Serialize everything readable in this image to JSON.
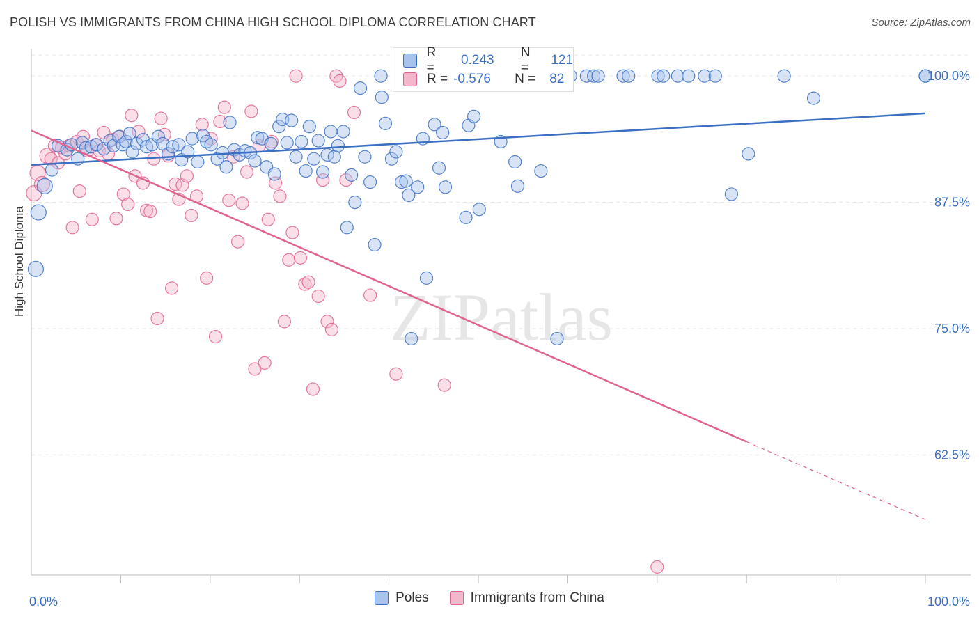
{
  "title": "POLISH VS IMMIGRANTS FROM CHINA HIGH SCHOOL DIPLOMA CORRELATION CHART",
  "source": "Source: ZipAtlas.com",
  "watermark": "ZIPatlas",
  "colors": {
    "blue": "#3a6fc4",
    "blue_fill": "#a9c4ec",
    "pink": "#e0628f",
    "pink_fill": "#f4b6cb",
    "tick_blue": "#3a6fc4"
  },
  "stats": {
    "r_label": "R =",
    "n_label": "N =",
    "rows": [
      {
        "series": "Poles",
        "r": "0.243",
        "n": "121"
      },
      {
        "series": "Immigrants from China",
        "r": "-0.576",
        "n": "82"
      }
    ]
  },
  "chart_data": {
    "type": "scatter",
    "ylabel": "High School Diploma",
    "xlabel": "",
    "xlim": [
      0,
      100
    ],
    "ylim": [
      50.6,
      102.7
    ],
    "x_tick_labels": [
      {
        "v": 0,
        "label": "0.0%"
      },
      {
        "v": 100,
        "label": "100.0%"
      }
    ],
    "y_ticks": [
      {
        "v": 100,
        "label": "100.0%"
      },
      {
        "v": 87.5,
        "label": "87.5%"
      },
      {
        "v": 75,
        "label": "75.0%"
      },
      {
        "v": 62.5,
        "label": "62.5%"
      }
    ],
    "grid": true,
    "legend_position": "bottom",
    "series": [
      {
        "name": "Poles",
        "trend": {
          "x": [
            0,
            100
          ],
          "y": [
            91.2,
            96.3
          ]
        },
        "points": [
          [
            0.5,
            80.9
          ],
          [
            0.8,
            86.5
          ],
          [
            1.5,
            89.1
          ],
          [
            2.3,
            90.7
          ],
          [
            3,
            93.1
          ],
          [
            4,
            92.7
          ],
          [
            4.5,
            93.2
          ],
          [
            5.2,
            91.8
          ],
          [
            5.7,
            93.4
          ],
          [
            6.1,
            92.9
          ],
          [
            6.7,
            93.0
          ],
          [
            7.3,
            93.2
          ],
          [
            8.1,
            92.8
          ],
          [
            8.8,
            93.6
          ],
          [
            9.2,
            93.1
          ],
          [
            9.8,
            94.0
          ],
          [
            10.2,
            93.2
          ],
          [
            10.6,
            93.5
          ],
          [
            11,
            94.3
          ],
          [
            11.3,
            92.5
          ],
          [
            11.8,
            93.3
          ],
          [
            12.5,
            93.7
          ],
          [
            12.9,
            93.0
          ],
          [
            13.5,
            93.2
          ],
          [
            14.2,
            94.0
          ],
          [
            14.7,
            93.3
          ],
          [
            15.3,
            92.3
          ],
          [
            15.8,
            93.0
          ],
          [
            16.5,
            93.2
          ],
          [
            16.8,
            91.7
          ],
          [
            17.5,
            92.5
          ],
          [
            18,
            93.8
          ],
          [
            18.6,
            91.5
          ],
          [
            19.2,
            94.1
          ],
          [
            19.6,
            93.5
          ],
          [
            20.1,
            93.2
          ],
          [
            20.8,
            91.8
          ],
          [
            21.4,
            92.4
          ],
          [
            21.8,
            91.0
          ],
          [
            22.2,
            95.4
          ],
          [
            22.7,
            92.7
          ],
          [
            23.3,
            92.2
          ],
          [
            23.9,
            92.6
          ],
          [
            24.5,
            92.4
          ],
          [
            25,
            91.6
          ],
          [
            25.3,
            93.9
          ],
          [
            25.8,
            93.8
          ],
          [
            26.3,
            91.0
          ],
          [
            26.8,
            93.3
          ],
          [
            27.2,
            90.3
          ],
          [
            27.7,
            95.0
          ],
          [
            28.1,
            95.7
          ],
          [
            28.6,
            93.4
          ],
          [
            29.1,
            95.6
          ],
          [
            29.6,
            92.0
          ],
          [
            30.2,
            93.5
          ],
          [
            30.7,
            90.6
          ],
          [
            31.1,
            95.0
          ],
          [
            31.6,
            91.8
          ],
          [
            32.1,
            93.6
          ],
          [
            32.6,
            90.5
          ],
          [
            33.1,
            92.2
          ],
          [
            33.5,
            94.5
          ],
          [
            33.9,
            92.0
          ],
          [
            34.3,
            93.1
          ],
          [
            34.9,
            94.5
          ],
          [
            35.3,
            85.0
          ],
          [
            35.8,
            90.2
          ],
          [
            36.2,
            87.5
          ],
          [
            36.8,
            98.8
          ],
          [
            37.3,
            92.0
          ],
          [
            37.9,
            89.5
          ],
          [
            38.4,
            83.3
          ],
          [
            39.1,
            100.0
          ],
          [
            39.6,
            95.3
          ],
          [
            40.3,
            91.8
          ],
          [
            40.8,
            92.5
          ],
          [
            41.4,
            89.5
          ],
          [
            41.9,
            89.6
          ],
          [
            42.2,
            88.2
          ],
          [
            42.5,
            74.0
          ],
          [
            43.2,
            89.0
          ],
          [
            43.8,
            93.8
          ],
          [
            44.2,
            80.0
          ],
          [
            45.1,
            95.2
          ],
          [
            45.6,
            90.9
          ],
          [
            46,
            94.4
          ],
          [
            46.3,
            89.0
          ],
          [
            47.8,
            100.0
          ],
          [
            48.6,
            86.0
          ],
          [
            48.9,
            95.1
          ],
          [
            49.5,
            96.0
          ],
          [
            50.1,
            86.8
          ],
          [
            51.2,
            100.0
          ],
          [
            52.5,
            93.5
          ],
          [
            53.3,
            100.0
          ],
          [
            54.1,
            91.5
          ],
          [
            54.4,
            89.1
          ],
          [
            55.8,
            100.0
          ],
          [
            57,
            90.6
          ],
          [
            58.8,
            74.0
          ],
          [
            62.1,
            100.0
          ],
          [
            62.9,
            100.0
          ],
          [
            63.4,
            100.0
          ],
          [
            66.2,
            100.0
          ],
          [
            66.8,
            100.0
          ],
          [
            70.1,
            100.0
          ],
          [
            70.7,
            100.0
          ],
          [
            72.3,
            100.0
          ],
          [
            73.5,
            100.0
          ],
          [
            75.3,
            100.0
          ],
          [
            76.5,
            100.0
          ],
          [
            78.3,
            88.3
          ],
          [
            80.2,
            92.3
          ],
          [
            84.2,
            100.0
          ],
          [
            87.5,
            97.8
          ],
          [
            100,
            100.0
          ],
          [
            100,
            100.0
          ],
          [
            39.2,
            97.9
          ],
          [
            46.5,
            100.0
          ],
          [
            60.3,
            100.0
          ]
        ]
      },
      {
        "name": "Immigrants from China",
        "trend": {
          "x": [
            0,
            80.0
          ],
          "y": [
            94.6,
            63.8
          ]
        },
        "trend_dashed": {
          "x": [
            80.0,
            100
          ],
          "y": [
            63.8,
            56.1
          ]
        },
        "points": [
          [
            0.3,
            88.4
          ],
          [
            0.7,
            90.4
          ],
          [
            1.2,
            89.3
          ],
          [
            1.8,
            92.1
          ],
          [
            2.2,
            91.8
          ],
          [
            2.6,
            93.1
          ],
          [
            3,
            91.4
          ],
          [
            3.4,
            92.9
          ],
          [
            3.8,
            92.3
          ],
          [
            4.2,
            93.1
          ],
          [
            4.6,
            85.0
          ],
          [
            5.1,
            93.5
          ],
          [
            5.4,
            88.6
          ],
          [
            5.8,
            94.0
          ],
          [
            6.3,
            92.6
          ],
          [
            6.8,
            85.8
          ],
          [
            7.2,
            93.2
          ],
          [
            7.6,
            92.6
          ],
          [
            8.1,
            94.4
          ],
          [
            8.6,
            92.3
          ],
          [
            9.1,
            93.7
          ],
          [
            9.5,
            85.9
          ],
          [
            9.9,
            94.0
          ],
          [
            10.3,
            88.3
          ],
          [
            10.8,
            87.3
          ],
          [
            11.2,
            96.1
          ],
          [
            11.6,
            90.1
          ],
          [
            12,
            94.5
          ],
          [
            12.5,
            89.4
          ],
          [
            12.9,
            86.7
          ],
          [
            13.3,
            86.6
          ],
          [
            13.7,
            91.8
          ],
          [
            14.1,
            76.0
          ],
          [
            14.5,
            95.8
          ],
          [
            14.9,
            94.2
          ],
          [
            15.3,
            92.1
          ],
          [
            15.7,
            79.0
          ],
          [
            16.1,
            89.3
          ],
          [
            16.5,
            87.8
          ],
          [
            16.9,
            89.2
          ],
          [
            17.4,
            90.1
          ],
          [
            17.9,
            86.2
          ],
          [
            18.5,
            88.1
          ],
          [
            19.1,
            95.2
          ],
          [
            19.6,
            80.0
          ],
          [
            20.1,
            93.8
          ],
          [
            20.6,
            74.2
          ],
          [
            21.1,
            95.5
          ],
          [
            21.6,
            96.9
          ],
          [
            22.1,
            87.7
          ],
          [
            22.6,
            92.0
          ],
          [
            23.1,
            83.6
          ],
          [
            23.6,
            87.4
          ],
          [
            24.1,
            90.5
          ],
          [
            24.6,
            96.5
          ],
          [
            25,
            71.0
          ],
          [
            25.5,
            93.1
          ],
          [
            26.1,
            71.6
          ],
          [
            26.5,
            85.8
          ],
          [
            26.9,
            93.5
          ],
          [
            27.3,
            89.4
          ],
          [
            27.8,
            88.1
          ],
          [
            28.3,
            75.7
          ],
          [
            28.8,
            81.8
          ],
          [
            29.2,
            84.5
          ],
          [
            29.6,
            100.0
          ],
          [
            30.1,
            82.0
          ],
          [
            30.6,
            79.4
          ],
          [
            31,
            79.6
          ],
          [
            31.5,
            69.0
          ],
          [
            32.1,
            78.2
          ],
          [
            32.6,
            89.7
          ],
          [
            33.1,
            75.7
          ],
          [
            33.6,
            74.9
          ],
          [
            34.1,
            100.0
          ],
          [
            34.5,
            99.5
          ],
          [
            35.2,
            89.7
          ],
          [
            36.1,
            96.4
          ],
          [
            37.9,
            78.3
          ],
          [
            40.8,
            70.5
          ],
          [
            46.2,
            69.4
          ],
          [
            70,
            51.4
          ]
        ]
      }
    ]
  }
}
